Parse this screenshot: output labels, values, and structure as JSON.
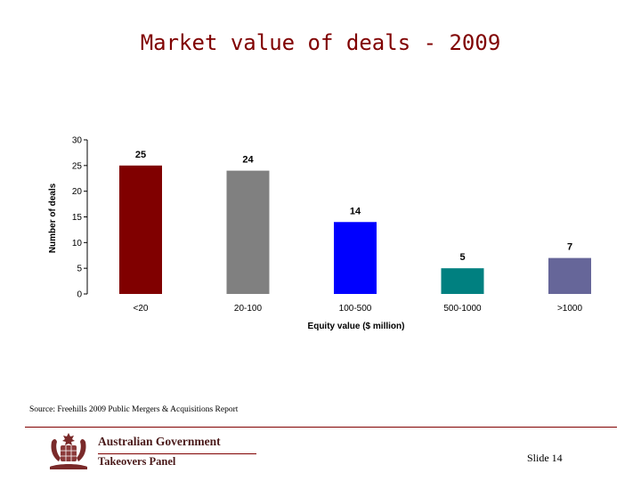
{
  "slide": {
    "title": "Market value of deals - 2009",
    "source": "Source: Freehills 2009 Public Mergers & Acquisitions Report",
    "slide_number": "Slide 14"
  },
  "logo": {
    "line1": "Australian Government",
    "line2": "Takeovers Panel"
  },
  "colors": {
    "title": "#800000",
    "bars": [
      "#800000",
      "#808080",
      "#0000ff",
      "#008080",
      "#666699"
    ]
  },
  "chart_data": {
    "type": "bar",
    "title": "",
    "categories": [
      "<20",
      "20-100",
      "100-500",
      "500-1000",
      ">1000"
    ],
    "values": [
      25,
      24,
      14,
      5,
      7
    ],
    "xlabel": "Equity value ($ million)",
    "ylabel": "Number of deals",
    "ylim": [
      0,
      30
    ],
    "yticks": [
      0,
      5,
      10,
      15,
      20,
      25,
      30
    ],
    "grid": false,
    "legend": "none"
  }
}
